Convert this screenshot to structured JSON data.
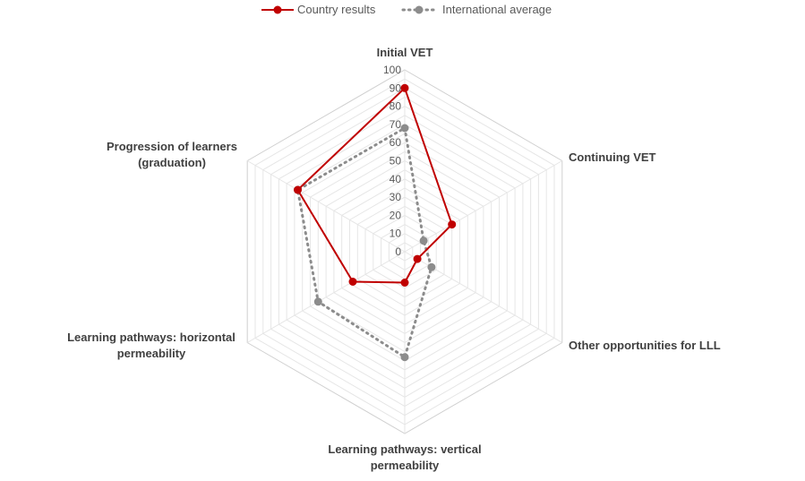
{
  "chart_data": {
    "type": "radar",
    "categories": [
      "Initial VET",
      "Continuing VET",
      "Other opportunities for LLL",
      "Learning pathways: vertical permeability",
      "Learning pathways: horizontal permeability",
      "Progression of learners (graduation)"
    ],
    "category_label_lines": [
      [
        "Initial VET"
      ],
      [
        "Continuing VET"
      ],
      [
        "Other opportunities for LLL"
      ],
      [
        "Learning pathways: vertical",
        "permeability"
      ],
      [
        "Learning pathways: horizontal",
        "permeability"
      ],
      [
        "Progression of learners",
        "(graduation)"
      ]
    ],
    "rlim": [
      0,
      100
    ],
    "ticks": [
      "0",
      "10",
      "20",
      "30",
      "40",
      "50",
      "60",
      "70",
      "80",
      "90",
      "100"
    ],
    "grid": true,
    "legend_position": "top",
    "series": [
      {
        "name": "Country results",
        "values": [
          90,
          30,
          8,
          17,
          33,
          68
        ],
        "color": "#c00000",
        "style": "solid"
      },
      {
        "name": "International average",
        "values": [
          68,
          12,
          17,
          58,
          55,
          68
        ],
        "color": "#8c8c8c",
        "style": "dotted"
      }
    ]
  }
}
